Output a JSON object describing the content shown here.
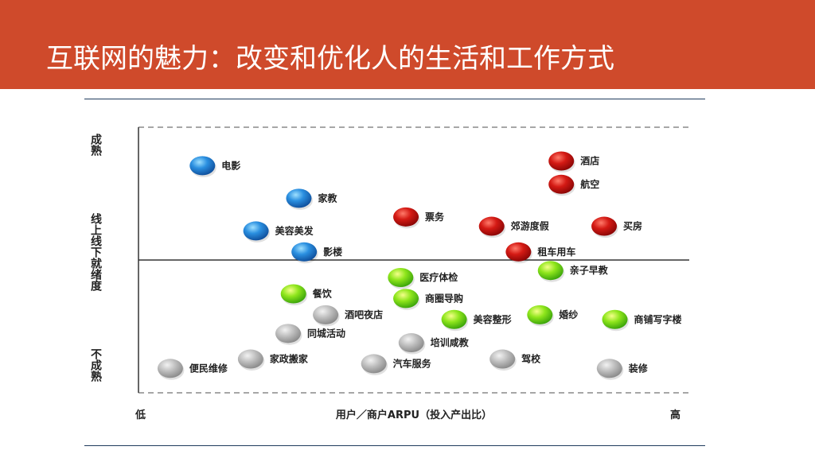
{
  "slide": {
    "title": "互联网的魅力：改变和优化人的生活和工作方式"
  },
  "colors": {
    "banner": "#cf4a2b",
    "mature": "#cc1111",
    "online_offline": "#2a8fe0",
    "transition": "#7fe01a",
    "immature": "#b5b5b5"
  },
  "chart_data": {
    "type": "scatter",
    "xlabel": "用户／商户ARPU（投入产出比）",
    "x_low_label": "低",
    "x_high_label": "高",
    "y_labels": {
      "top": "成熟",
      "middle": "线上线下就绪度",
      "bottom": "不成熟"
    },
    "xlim": [
      0,
      100
    ],
    "ylim": [
      0,
      100
    ],
    "legend": "none",
    "grid": "dashed top and bottom boundary, solid middle divider",
    "points": [
      {
        "label": "电影",
        "x": 10,
        "y": 91,
        "group": "online_offline"
      },
      {
        "label": "家教",
        "x": 28,
        "y": 77,
        "group": "online_offline"
      },
      {
        "label": "美容美发",
        "x": 20,
        "y": 63,
        "group": "online_offline"
      },
      {
        "label": "影楼",
        "x": 29,
        "y": 54,
        "group": "online_offline"
      },
      {
        "label": "酒店",
        "x": 77,
        "y": 93,
        "group": "mature"
      },
      {
        "label": "航空",
        "x": 77,
        "y": 83,
        "group": "mature"
      },
      {
        "label": "票务",
        "x": 48,
        "y": 69,
        "group": "mature"
      },
      {
        "label": "郊游度假",
        "x": 64,
        "y": 65,
        "group": "mature"
      },
      {
        "label": "买房",
        "x": 85,
        "y": 65,
        "group": "mature"
      },
      {
        "label": "租车用车",
        "x": 69,
        "y": 54,
        "group": "mature"
      },
      {
        "label": "亲子早教",
        "x": 75,
        "y": 46,
        "group": "transition"
      },
      {
        "label": "医疗体检",
        "x": 47,
        "y": 43,
        "group": "transition"
      },
      {
        "label": "餐饮",
        "x": 27,
        "y": 36,
        "group": "transition"
      },
      {
        "label": "商圈导购",
        "x": 48,
        "y": 34,
        "group": "transition"
      },
      {
        "label": "美容整形",
        "x": 57,
        "y": 25,
        "group": "transition"
      },
      {
        "label": "婚纱",
        "x": 73,
        "y": 27,
        "group": "transition"
      },
      {
        "label": "商铺写字楼",
        "x": 87,
        "y": 25,
        "group": "transition"
      },
      {
        "label": "酒吧夜店",
        "x": 33,
        "y": 27,
        "group": "immature"
      },
      {
        "label": "同城活动",
        "x": 26,
        "y": 19,
        "group": "immature"
      },
      {
        "label": "培训咸教",
        "x": 49,
        "y": 15,
        "group": "immature"
      },
      {
        "label": "家政搬家",
        "x": 19,
        "y": 8,
        "group": "immature"
      },
      {
        "label": "汽车服务",
        "x": 42,
        "y": 6,
        "group": "immature"
      },
      {
        "label": "驾校",
        "x": 66,
        "y": 8,
        "group": "immature"
      },
      {
        "label": "便民维修",
        "x": 4,
        "y": 4,
        "group": "immature"
      },
      {
        "label": "装修",
        "x": 86,
        "y": 4,
        "group": "immature"
      }
    ]
  }
}
